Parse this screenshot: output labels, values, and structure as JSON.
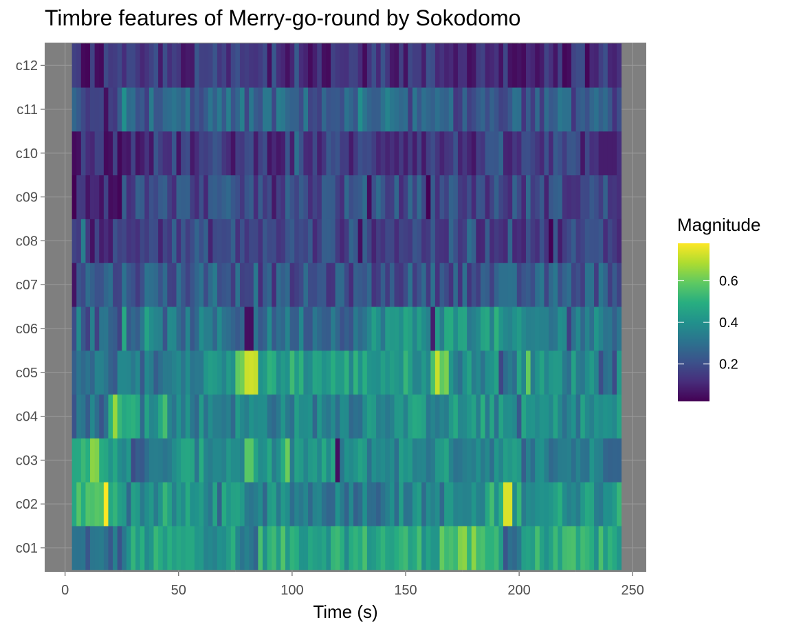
{
  "chart_data": {
    "type": "heatmap",
    "title": "Timbre features of Merry-go-round by Sokodomo",
    "xlabel": "Time (s)",
    "ylabel": "",
    "xlim": [
      -9,
      256
    ],
    "x_ticks": [
      0,
      50,
      100,
      150,
      200,
      250
    ],
    "y_categories": [
      "c01",
      "c02",
      "c03",
      "c04",
      "c05",
      "c06",
      "c07",
      "c08",
      "c09",
      "c10",
      "c11",
      "c12"
    ],
    "x_start": 3,
    "x_end": 245,
    "bin_width": 2,
    "legend": {
      "title": "Magnitude",
      "ticks": [
        0.2,
        0.4,
        0.6
      ],
      "range": [
        0.02,
        0.78
      ],
      "colormap": "viridis",
      "position": "right"
    },
    "panel_background": "#7f7f7f",
    "grid": true,
    "rows": {
      "c01": {
        "base": 0.46,
        "segments": [
          [
            3,
            26,
            0.28
          ],
          [
            26,
            75,
            0.44
          ],
          [
            75,
            85,
            0.32
          ],
          [
            85,
            165,
            0.48
          ],
          [
            165,
            180,
            0.56
          ],
          [
            180,
            192,
            0.5
          ],
          [
            192,
            200,
            0.3
          ],
          [
            200,
            245,
            0.47
          ]
        ]
      },
      "c02": {
        "base": 0.4,
        "segments": [
          [
            3,
            25,
            0.52
          ],
          [
            25,
            80,
            0.4
          ],
          [
            80,
            140,
            0.34
          ],
          [
            140,
            185,
            0.36
          ],
          [
            185,
            200,
            0.46
          ],
          [
            200,
            245,
            0.42
          ]
        ],
        "spikes": [
          [
            17,
            19,
            0.78
          ],
          [
            193,
            197,
            0.74
          ]
        ]
      },
      "c03": {
        "base": 0.38,
        "segments": [
          [
            3,
            15,
            0.56
          ],
          [
            15,
            28,
            0.42
          ],
          [
            28,
            45,
            0.28
          ],
          [
            45,
            120,
            0.4
          ],
          [
            120,
            200,
            0.38
          ],
          [
            200,
            245,
            0.34
          ]
        ],
        "spikes": [
          [
            78,
            82,
            0.58
          ],
          [
            119,
            120,
            0.05
          ],
          [
            192,
            193,
            0.1
          ]
        ]
      },
      "c04": {
        "base": 0.36,
        "segments": [
          [
            3,
            18,
            0.3
          ],
          [
            18,
            45,
            0.46
          ],
          [
            45,
            130,
            0.36
          ],
          [
            130,
            185,
            0.4
          ],
          [
            185,
            245,
            0.38
          ]
        ],
        "spikes": [
          [
            20,
            23,
            0.66
          ],
          [
            42,
            44,
            0.55
          ],
          [
            245,
            246,
            0.3
          ]
        ]
      },
      "c05": {
        "base": 0.36,
        "segments": [
          [
            3,
            45,
            0.3
          ],
          [
            45,
            75,
            0.4
          ],
          [
            75,
            85,
            0.64
          ],
          [
            85,
            160,
            0.44
          ],
          [
            160,
            168,
            0.64
          ],
          [
            168,
            245,
            0.38
          ]
        ],
        "spikes": [
          [
            203,
            205,
            0.6
          ],
          [
            190,
            192,
            0.18
          ]
        ]
      },
      "c06": {
        "base": 0.3,
        "segments": [
          [
            3,
            25,
            0.25
          ],
          [
            25,
            80,
            0.3
          ],
          [
            80,
            135,
            0.3
          ],
          [
            135,
            160,
            0.4
          ],
          [
            160,
            192,
            0.42
          ],
          [
            192,
            245,
            0.34
          ]
        ],
        "spikes": [
          [
            25,
            27,
            0.48
          ],
          [
            79,
            82,
            0.05
          ],
          [
            160,
            162,
            0.08
          ]
        ]
      },
      "c07": {
        "base": 0.22,
        "segments": [
          [
            3,
            85,
            0.24
          ],
          [
            85,
            145,
            0.2
          ],
          [
            145,
            200,
            0.22
          ],
          [
            200,
            245,
            0.24
          ]
        ],
        "spikes": [
          [
            3,
            5,
            0.06
          ]
        ]
      },
      "c08": {
        "base": 0.18,
        "segments": [
          [
            3,
            30,
            0.14
          ],
          [
            30,
            210,
            0.18
          ],
          [
            210,
            215,
            0.06
          ],
          [
            215,
            245,
            0.17
          ]
        ]
      },
      "c09": {
        "base": 0.16,
        "segments": [
          [
            3,
            25,
            0.1
          ],
          [
            25,
            110,
            0.19
          ],
          [
            110,
            170,
            0.2
          ],
          [
            170,
            245,
            0.18
          ]
        ]
      },
      "c10": {
        "base": 0.14,
        "segments": [
          [
            3,
            25,
            0.12
          ],
          [
            25,
            80,
            0.14
          ],
          [
            80,
            160,
            0.15
          ],
          [
            160,
            245,
            0.14
          ]
        ],
        "spikes": [
          [
            235,
            243,
            0.08
          ]
        ]
      },
      "c11": {
        "base": 0.24,
        "segments": [
          [
            3,
            45,
            0.22
          ],
          [
            45,
            100,
            0.26
          ],
          [
            100,
            160,
            0.24
          ],
          [
            160,
            245,
            0.22
          ]
        ],
        "spikes": [
          [
            17,
            19,
            0.05
          ],
          [
            25,
            27,
            0.4
          ]
        ]
      },
      "c12": {
        "base": 0.12,
        "segments": [
          [
            3,
            35,
            0.1
          ],
          [
            35,
            100,
            0.14
          ],
          [
            100,
            170,
            0.13
          ],
          [
            170,
            245,
            0.12
          ]
        ]
      }
    }
  }
}
